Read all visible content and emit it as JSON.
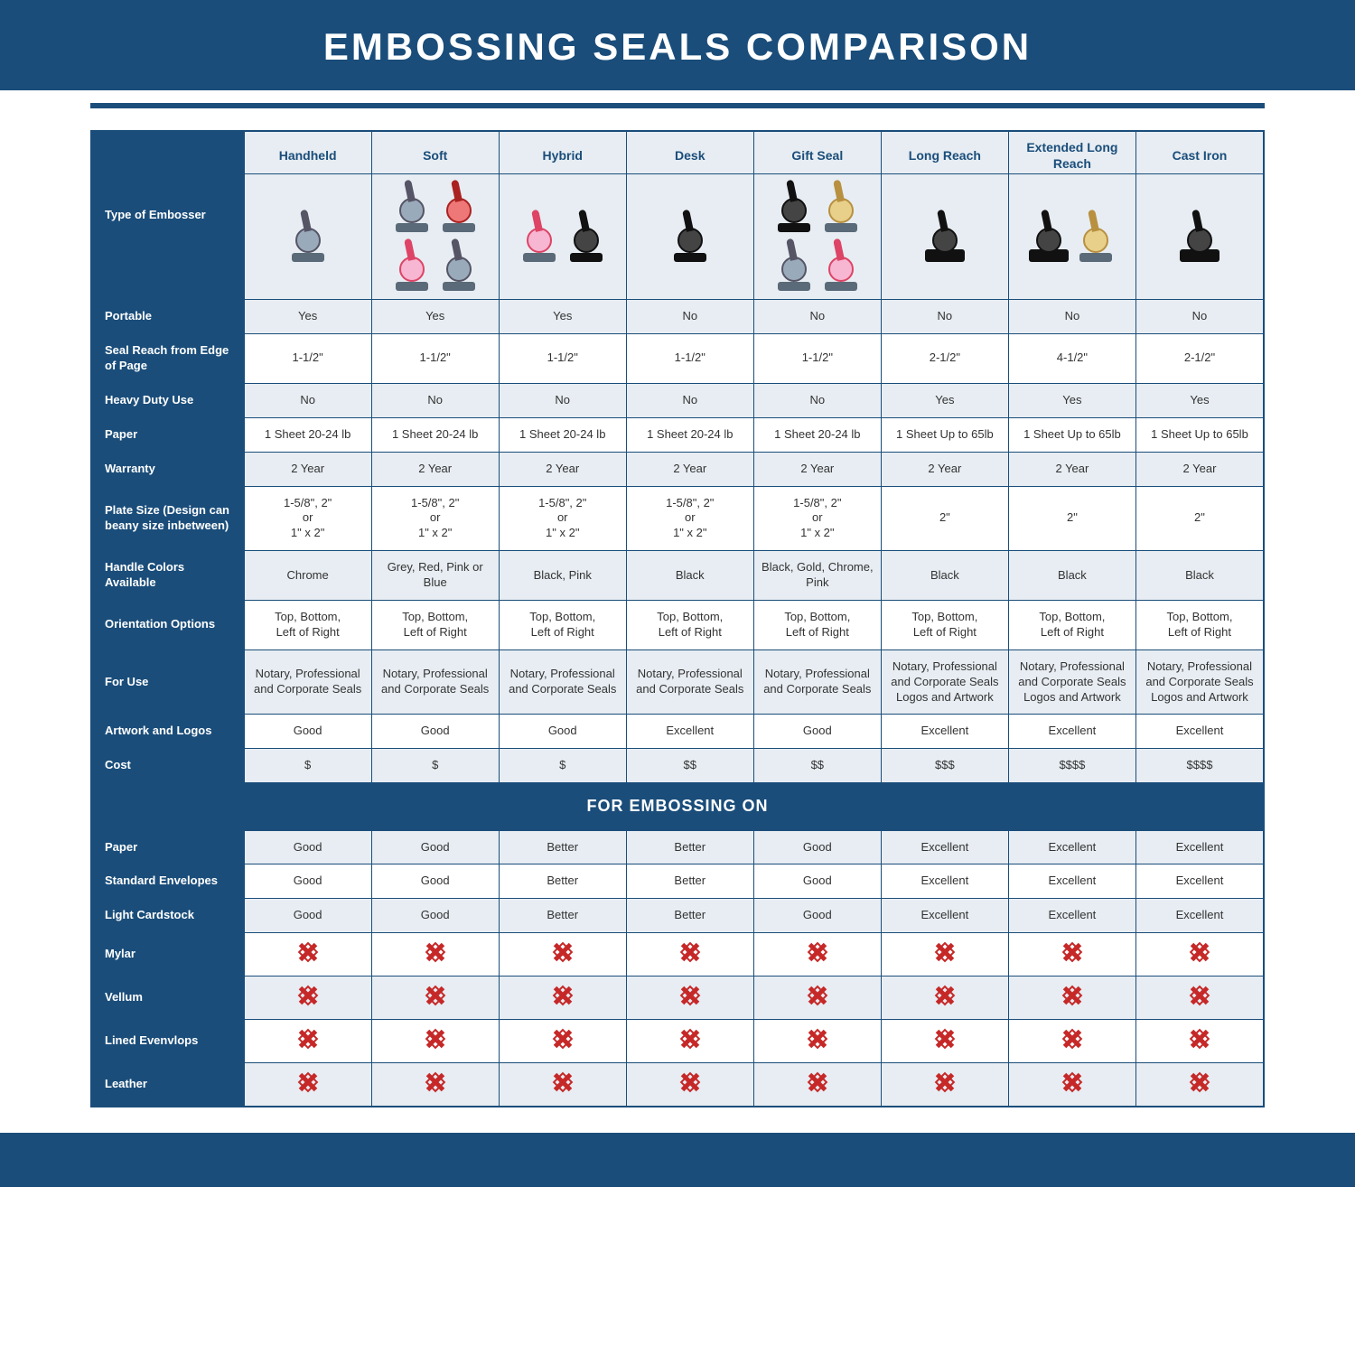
{
  "colors": {
    "brand": "#1a4d7a",
    "panel": "#e7edf2",
    "text": "#333333",
    "x_red": "#c62828",
    "white": "#ffffff"
  },
  "title": "EMBOSSING SEALS COMPARISON",
  "embossing_section_label": "FOR EMBOSSING ON",
  "type_row_label": "Type of Embosser",
  "columns": [
    "Handheld",
    "Soft",
    "Hybrid",
    "Desk",
    "Gift Seal",
    "Long Reach",
    "Extended Long Reach",
    "Cast Iron"
  ],
  "rows": [
    {
      "label": "Portable",
      "alt": true,
      "values": [
        "Yes",
        "Yes",
        "Yes",
        "No",
        "No",
        "No",
        "No",
        "No"
      ]
    },
    {
      "label": "Seal Reach from Edge of Page",
      "alt": false,
      "values": [
        "1-1/2\"",
        "1-1/2\"",
        "1-1/2\"",
        "1-1/2\"",
        "1-1/2\"",
        "2-1/2\"",
        "4-1/2\"",
        "2-1/2\""
      ]
    },
    {
      "label": "Heavy Duty Use",
      "alt": true,
      "values": [
        "No",
        "No",
        "No",
        "No",
        "No",
        "Yes",
        "Yes",
        "Yes"
      ]
    },
    {
      "label": "Paper",
      "alt": false,
      "values": [
        "1 Sheet 20-24 lb",
        "1 Sheet 20-24 lb",
        "1 Sheet 20-24 lb",
        "1 Sheet 20-24 lb",
        "1 Sheet 20-24 lb",
        "1 Sheet Up to 65lb",
        "1 Sheet Up to 65lb",
        "1 Sheet Up to 65lb"
      ]
    },
    {
      "label": "Warranty",
      "alt": true,
      "values": [
        "2 Year",
        "2 Year",
        "2 Year",
        "2 Year",
        "2 Year",
        "2 Year",
        "2 Year",
        "2 Year"
      ]
    },
    {
      "label": "Plate Size (Design can beany size inbetween)",
      "alt": false,
      "values": [
        "1-5/8\", 2\"\nor\n1\" x 2\"",
        "1-5/8\", 2\"\nor\n1\" x 2\"",
        "1-5/8\", 2\"\nor\n1\" x 2\"",
        "1-5/8\", 2\"\nor\n1\" x 2\"",
        "1-5/8\", 2\"\nor\n1\" x 2\"",
        "2\"",
        "2\"",
        "2\""
      ]
    },
    {
      "label": "Handle Colors Available",
      "alt": true,
      "values": [
        "Chrome",
        "Grey, Red, Pink or Blue",
        "Black, Pink",
        "Black",
        "Black, Gold, Chrome, Pink",
        "Black",
        "Black",
        "Black"
      ]
    },
    {
      "label": "Orientation Options",
      "alt": false,
      "values": [
        "Top, Bottom,\nLeft of Right",
        "Top, Bottom,\nLeft of Right",
        "Top, Bottom,\nLeft of Right",
        "Top, Bottom,\nLeft of Right",
        "Top, Bottom,\nLeft of Right",
        "Top, Bottom,\nLeft of Right",
        "Top, Bottom,\nLeft of Right",
        "Top, Bottom,\nLeft of Right"
      ]
    },
    {
      "label": "For Use",
      "alt": true,
      "values": [
        "Notary, Professional and Corporate Seals",
        "Notary, Professional and Corporate Seals",
        "Notary, Professional and Corporate Seals",
        "Notary, Professional and Corporate Seals",
        "Notary, Professional and Corporate Seals",
        "Notary, Professional and Corporate Seals Logos and Artwork",
        "Notary, Professional and Corporate Seals Logos and Artwork",
        "Notary, Professional and Corporate Seals Logos and Artwork"
      ]
    },
    {
      "label": "Artwork and Logos",
      "alt": false,
      "values": [
        "Good",
        "Good",
        "Good",
        "Excellent",
        "Good",
        "Excellent",
        "Excellent",
        "Excellent"
      ]
    },
    {
      "label": "Cost",
      "alt": true,
      "values": [
        "$",
        "$",
        "$",
        "$$",
        "$$",
        "$$$",
        "$$$$",
        "$$$$"
      ]
    }
  ],
  "embossing_rows": [
    {
      "label": "Paper",
      "alt": true,
      "values": [
        "Good",
        "Good",
        "Better",
        "Better",
        "Good",
        "Excellent",
        "Excellent",
        "Excellent"
      ]
    },
    {
      "label": "Standard Envelopes",
      "alt": false,
      "values": [
        "Good",
        "Good",
        "Better",
        "Better",
        "Good",
        "Excellent",
        "Excellent",
        "Excellent"
      ]
    },
    {
      "label": "Light Cardstock",
      "alt": true,
      "values": [
        "Good",
        "Good",
        "Better",
        "Better",
        "Good",
        "Excellent",
        "Excellent",
        "Excellent"
      ]
    },
    {
      "label": "Mylar",
      "alt": false,
      "values": [
        "X",
        "X",
        "X",
        "X",
        "X",
        "X",
        "X",
        "X"
      ]
    },
    {
      "label": "Vellum",
      "alt": true,
      "values": [
        "X",
        "X",
        "X",
        "X",
        "X",
        "X",
        "X",
        "X"
      ]
    },
    {
      "label": "Lined Evenvlops",
      "alt": false,
      "values": [
        "X",
        "X",
        "X",
        "X",
        "X",
        "X",
        "X",
        "X"
      ]
    },
    {
      "label": "Leather",
      "alt": true,
      "values": [
        "X",
        "X",
        "X",
        "X",
        "X",
        "X",
        "X",
        "X"
      ]
    }
  ],
  "product_icons": [
    [
      "chrome"
    ],
    [
      "chrome",
      "red",
      "pink",
      "blue"
    ],
    [
      "pink",
      "black"
    ],
    [
      "black"
    ],
    [
      "black",
      "gold",
      "chrome",
      "pink"
    ],
    [
      "black-wide"
    ],
    [
      "black-wide",
      "gold"
    ],
    [
      "black-wide"
    ]
  ]
}
